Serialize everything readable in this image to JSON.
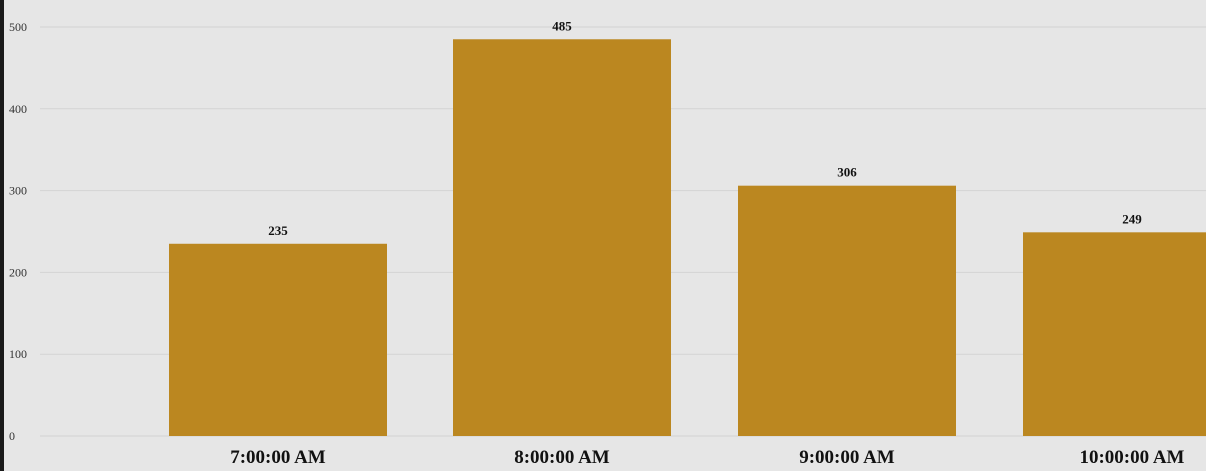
{
  "chart_data": {
    "type": "bar",
    "categories": [
      "7:00:00 AM",
      "8:00:00 AM",
      "9:00:00 AM",
      "10:00:00 AM"
    ],
    "values": [
      235,
      485,
      306,
      249
    ],
    "data_labels": [
      "235",
      "485",
      "306",
      "249"
    ],
    "title": "",
    "xlabel": "",
    "ylabel": "",
    "ylim": [
      0,
      500
    ],
    "yticks": [
      0,
      100,
      200,
      300,
      400,
      500
    ],
    "grid": true,
    "legend": "none",
    "bar_color": "#bb8720",
    "background_color": "#e6e6e6"
  }
}
